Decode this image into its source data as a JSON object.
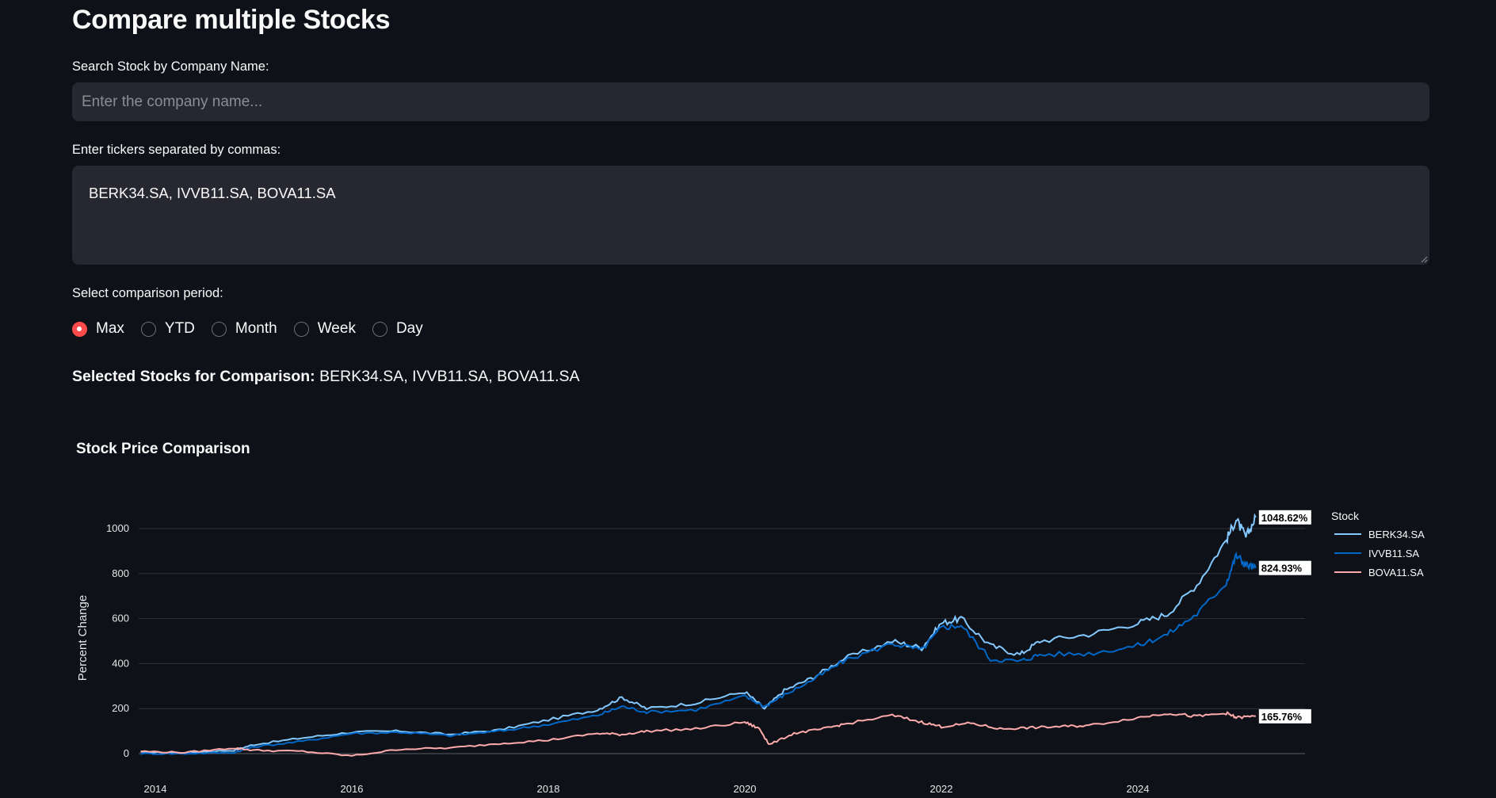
{
  "page": {
    "title": "Compare multiple Stocks"
  },
  "search": {
    "label": "Search Stock by Company Name:",
    "placeholder": "Enter the company name...",
    "value": ""
  },
  "tickers": {
    "label": "Enter tickers separated by commas:",
    "value": "BERK34.SA, IVVB11.SA, BOVA11.SA"
  },
  "period": {
    "label": "Select comparison period:",
    "options": [
      "Max",
      "YTD",
      "Month",
      "Week",
      "Day"
    ],
    "selected": "Max"
  },
  "selected_stocks": {
    "prefix": "Selected Stocks for Comparison:",
    "value": "BERK34.SA, IVVB11.SA, BOVA11.SA"
  },
  "colors": {
    "background": "#0e1117",
    "input_bg": "#262730",
    "accent": "#ff4b4b"
  },
  "chart_data": {
    "type": "line",
    "title": "Stock Price Comparison",
    "xlabel": "",
    "ylabel": "Percent Change",
    "xlim": [
      2013.8,
      2025.6
    ],
    "ylim": [
      -30,
      1150
    ],
    "x_ticks": [
      "2014",
      "2016",
      "2018",
      "2020",
      "2022",
      "2024"
    ],
    "y_ticks": [
      0,
      200,
      400,
      600,
      800,
      1000
    ],
    "grid": true,
    "legend": {
      "title": "Stock",
      "position": "right"
    },
    "series": [
      {
        "name": "BERK34.SA",
        "color": "#83c9ff",
        "end_label": "1048.62%",
        "points": [
          [
            2013.85,
            5
          ],
          [
            2014.3,
            5
          ],
          [
            2014.8,
            15
          ],
          [
            2015.0,
            40
          ],
          [
            2015.5,
            70
          ],
          [
            2016.0,
            95
          ],
          [
            2016.5,
            100
          ],
          [
            2017.0,
            85
          ],
          [
            2017.5,
            105
          ],
          [
            2018.0,
            150
          ],
          [
            2018.5,
            195
          ],
          [
            2018.75,
            250
          ],
          [
            2019.0,
            200
          ],
          [
            2019.5,
            225
          ],
          [
            2020.0,
            275
          ],
          [
            2020.2,
            200
          ],
          [
            2020.4,
            280
          ],
          [
            2020.7,
            340
          ],
          [
            2021.0,
            420
          ],
          [
            2021.5,
            500
          ],
          [
            2021.8,
            470
          ],
          [
            2022.0,
            580
          ],
          [
            2022.2,
            600
          ],
          [
            2022.5,
            480
          ],
          [
            2022.8,
            440
          ],
          [
            2023.0,
            500
          ],
          [
            2023.5,
            530
          ],
          [
            2024.0,
            580
          ],
          [
            2024.3,
            620
          ],
          [
            2024.6,
            750
          ],
          [
            2024.9,
            950
          ],
          [
            2025.0,
            1040
          ],
          [
            2025.1,
            960
          ],
          [
            2025.2,
            1050
          ]
        ]
      },
      {
        "name": "IVVB11.SA",
        "color": "#0068c9",
        "end_label": "824.93%",
        "points": [
          [
            2013.85,
            0
          ],
          [
            2014.3,
            0
          ],
          [
            2014.8,
            5
          ],
          [
            2015.0,
            30
          ],
          [
            2015.5,
            55
          ],
          [
            2016.0,
            90
          ],
          [
            2016.5,
            95
          ],
          [
            2017.0,
            80
          ],
          [
            2017.5,
            100
          ],
          [
            2018.0,
            130
          ],
          [
            2018.5,
            170
          ],
          [
            2018.75,
            210
          ],
          [
            2019.0,
            185
          ],
          [
            2019.5,
            195
          ],
          [
            2020.0,
            255
          ],
          [
            2020.2,
            210
          ],
          [
            2020.4,
            260
          ],
          [
            2020.7,
            330
          ],
          [
            2021.0,
            410
          ],
          [
            2021.5,
            490
          ],
          [
            2021.8,
            460
          ],
          [
            2022.0,
            560
          ],
          [
            2022.2,
            570
          ],
          [
            2022.5,
            420
          ],
          [
            2022.8,
            410
          ],
          [
            2023.0,
            440
          ],
          [
            2023.5,
            445
          ],
          [
            2024.0,
            480
          ],
          [
            2024.3,
            530
          ],
          [
            2024.6,
            620
          ],
          [
            2024.9,
            760
          ],
          [
            2025.0,
            880
          ],
          [
            2025.1,
            840
          ],
          [
            2025.2,
            825
          ]
        ]
      },
      {
        "name": "BOVA11.SA",
        "color": "#ffabab",
        "end_label": "165.76%",
        "points": [
          [
            2013.85,
            10
          ],
          [
            2014.3,
            5
          ],
          [
            2014.8,
            25
          ],
          [
            2015.0,
            15
          ],
          [
            2015.5,
            10
          ],
          [
            2016.0,
            -10
          ],
          [
            2016.5,
            20
          ],
          [
            2017.0,
            25
          ],
          [
            2017.5,
            45
          ],
          [
            2018.0,
            60
          ],
          [
            2018.5,
            90
          ],
          [
            2018.75,
            85
          ],
          [
            2019.0,
            100
          ],
          [
            2019.5,
            110
          ],
          [
            2020.0,
            140
          ],
          [
            2020.15,
            110
          ],
          [
            2020.25,
            40
          ],
          [
            2020.5,
            90
          ],
          [
            2020.8,
            110
          ],
          [
            2021.0,
            130
          ],
          [
            2021.5,
            170
          ],
          [
            2021.8,
            140
          ],
          [
            2022.0,
            120
          ],
          [
            2022.3,
            135
          ],
          [
            2022.6,
            110
          ],
          [
            2022.9,
            115
          ],
          [
            2023.2,
            120
          ],
          [
            2023.5,
            125
          ],
          [
            2024.0,
            160
          ],
          [
            2024.3,
            180
          ],
          [
            2024.6,
            165
          ],
          [
            2024.9,
            180
          ],
          [
            2025.0,
            160
          ],
          [
            2025.2,
            166
          ]
        ]
      }
    ]
  }
}
